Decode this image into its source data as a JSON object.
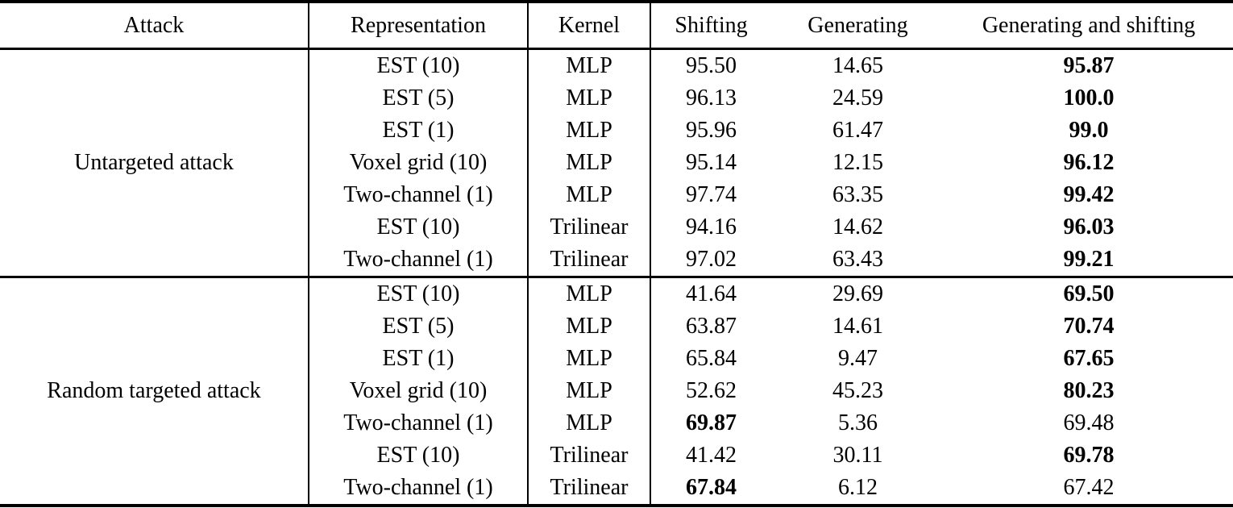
{
  "page": {
    "background": "#ffffff",
    "text_color": "#000000"
  },
  "table": {
    "columns": [
      {
        "label": "Attack"
      },
      {
        "label": "Representation"
      },
      {
        "label": "Kernel"
      },
      {
        "label": "Shifting"
      },
      {
        "label": "Generating"
      },
      {
        "label": "Generating and shifting"
      }
    ],
    "groups": [
      {
        "attack": "Untargeted attack",
        "rows": [
          {
            "representation": "EST (10)",
            "kernel": "MLP",
            "values": [
              "95.50",
              "14.65",
              "95.87"
            ],
            "bold": [
              false,
              false,
              true
            ]
          },
          {
            "representation": "EST (5)",
            "kernel": "MLP",
            "values": [
              "96.13",
              "24.59",
              "100.0"
            ],
            "bold": [
              false,
              false,
              true
            ]
          },
          {
            "representation": "EST (1)",
            "kernel": "MLP",
            "values": [
              "95.96",
              "61.47",
              "99.0"
            ],
            "bold": [
              false,
              false,
              true
            ]
          },
          {
            "representation": "Voxel grid (10)",
            "kernel": "MLP",
            "values": [
              "95.14",
              "12.15",
              "96.12"
            ],
            "bold": [
              false,
              false,
              true
            ]
          },
          {
            "representation": "Two-channel (1)",
            "kernel": "MLP",
            "values": [
              "97.74",
              "63.35",
              "99.42"
            ],
            "bold": [
              false,
              false,
              true
            ]
          },
          {
            "representation": "EST (10)",
            "kernel": "Trilinear",
            "values": [
              "94.16",
              "14.62",
              "96.03"
            ],
            "bold": [
              false,
              false,
              true
            ]
          },
          {
            "representation": "Two-channel (1)",
            "kernel": "Trilinear",
            "values": [
              "97.02",
              "63.43",
              "99.21"
            ],
            "bold": [
              false,
              false,
              true
            ]
          }
        ]
      },
      {
        "attack": "Random targeted attack",
        "rows": [
          {
            "representation": "EST (10)",
            "kernel": "MLP",
            "values": [
              "41.64",
              "29.69",
              "69.50"
            ],
            "bold": [
              false,
              false,
              true
            ]
          },
          {
            "representation": "EST (5)",
            "kernel": "MLP",
            "values": [
              "63.87",
              "14.61",
              "70.74"
            ],
            "bold": [
              false,
              false,
              true
            ]
          },
          {
            "representation": "EST (1)",
            "kernel": "MLP",
            "values": [
              "65.84",
              "9.47",
              "67.65"
            ],
            "bold": [
              false,
              false,
              true
            ]
          },
          {
            "representation": "Voxel grid (10)",
            "kernel": "MLP",
            "values": [
              "52.62",
              "45.23",
              "80.23"
            ],
            "bold": [
              false,
              false,
              true
            ]
          },
          {
            "representation": "Two-channel (1)",
            "kernel": "MLP",
            "values": [
              "69.87",
              "5.36",
              "69.48"
            ],
            "bold": [
              true,
              false,
              false
            ]
          },
          {
            "representation": "EST (10)",
            "kernel": "Trilinear",
            "values": [
              "41.42",
              "30.11",
              "69.78"
            ],
            "bold": [
              false,
              false,
              true
            ]
          },
          {
            "representation": "Two-channel (1)",
            "kernel": "Trilinear",
            "values": [
              "67.84",
              "6.12",
              "67.42"
            ],
            "bold": [
              true,
              false,
              false
            ]
          }
        ]
      }
    ]
  }
}
